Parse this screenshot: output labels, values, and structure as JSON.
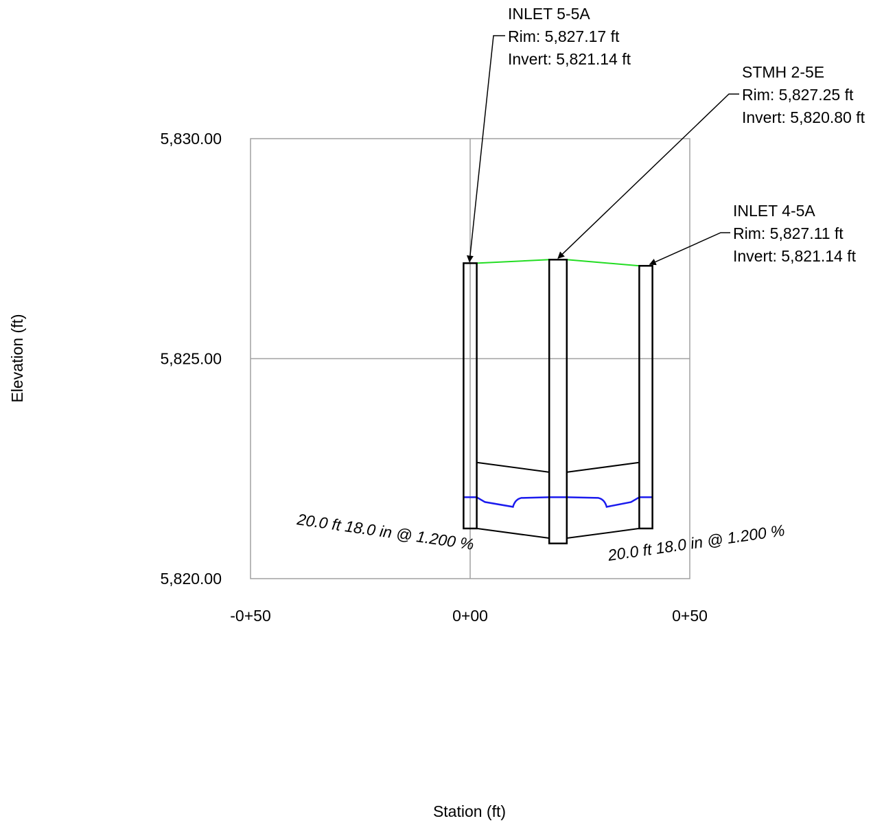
{
  "chart_data": {
    "type": "profile",
    "xlabel": "Station (ft)",
    "ylabel": "Elevation (ft)",
    "xlim": [
      -50,
      50
    ],
    "ylim": [
      5820,
      5830
    ],
    "x_ticks": [
      {
        "value": -50,
        "label": "-0+50"
      },
      {
        "value": 0,
        "label": "0+00"
      },
      {
        "value": 50,
        "label": "0+50"
      }
    ],
    "y_ticks": [
      {
        "value": 5830,
        "label": "5,830.00"
      },
      {
        "value": 5825,
        "label": "5,825.00"
      },
      {
        "value": 5820,
        "label": "5,820.00"
      }
    ],
    "grid": true,
    "colors": {
      "ground": "#22dd22",
      "hgl": "#1a1aee",
      "structure": "#000000",
      "grid": "#a0a0a0"
    },
    "structures": [
      {
        "name": "INLET 5-5A",
        "station": 0.0,
        "rim": 5827.17,
        "invert": 5821.14,
        "rim_label": "Rim: 5,827.17 ft",
        "invert_label": "Invert: 5,821.14 ft",
        "width_ft": 3.0,
        "hgl": 5821.85
      },
      {
        "name": "STMH 2-5E",
        "station": 20.0,
        "rim": 5827.25,
        "invert": 5820.8,
        "rim_label": "Rim: 5,827.25 ft",
        "invert_label": "Invert: 5,820.80 ft",
        "width_ft": 4.0,
        "hgl": 5821.85
      },
      {
        "name": "INLET 4-5A",
        "station": 40.0,
        "rim": 5827.11,
        "invert": 5821.14,
        "rim_label": "Rim: 5,827.11 ft",
        "invert_label": "Invert: 5,821.14 ft",
        "width_ft": 3.0,
        "hgl": 5821.85
      }
    ],
    "pipes": [
      {
        "label": "20.0 ft 18.0 in @ 1.200 %",
        "length_ft": 20.0,
        "diameter_in": 18.0,
        "slope_pct": 1.2,
        "from_station": 1.5,
        "to_station": 18.0,
        "invert_start": 5821.14,
        "invert_end": 5820.92
      },
      {
        "label": "20.0 ft 18.0 in @ 1.200 %",
        "length_ft": 20.0,
        "diameter_in": 18.0,
        "slope_pct": 1.2,
        "from_station": 22.0,
        "to_station": 38.5,
        "invert_start": 5820.92,
        "invert_end": 5821.14
      }
    ]
  }
}
